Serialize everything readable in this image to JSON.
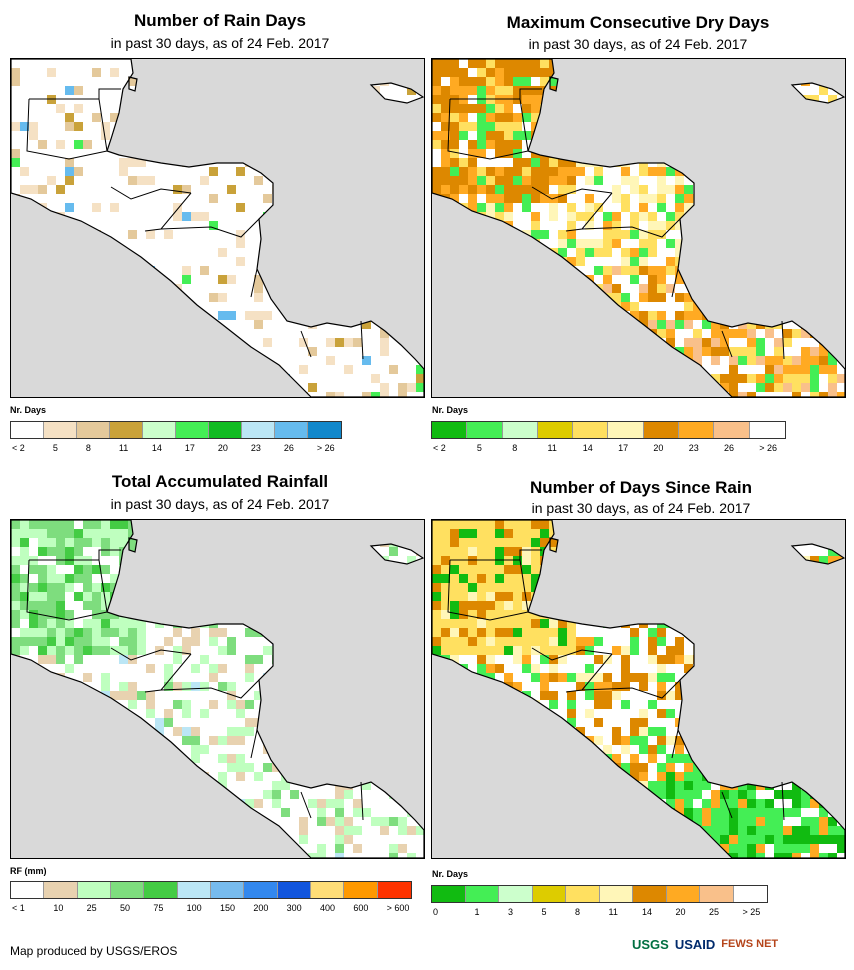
{
  "panels": [
    {
      "title": "Number of Rain Days",
      "subtitle": "in past 30 days, as of 24 Feb. 2017",
      "legend_title": "Nr. Days",
      "legend_colors": [
        "#ffffff",
        "#f5e1c4",
        "#e4c99b",
        "#c9a23a",
        "#ccffcc",
        "#44ee55",
        "#11bb22",
        "#bbe6f5",
        "#66bbee",
        "#1188cc"
      ],
      "legend_labels": [
        "< 2",
        "5",
        "8",
        "11",
        "14",
        "17",
        "20",
        "23",
        "26",
        "> 26"
      ],
      "scheme": "rain_days"
    },
    {
      "title": "Maximum Consecutive Dry Days",
      "subtitle": "in past 30 days, as of 24 Feb. 2017",
      "legend_title": "Nr. Days",
      "legend_colors": [
        "#11bb11",
        "#44ee55",
        "#ccffcc",
        "#ddcc00",
        "#ffe060",
        "#fff6b8",
        "#dd8800",
        "#ffaa22",
        "#f9c08a",
        "#ffffff"
      ],
      "legend_labels": [
        "< 2",
        "5",
        "8",
        "11",
        "14",
        "17",
        "20",
        "23",
        "26",
        "> 26"
      ],
      "scheme": "dry_days"
    },
    {
      "title": "Total Accumulated Rainfall",
      "subtitle": "in past 30 days, as of 24 Feb. 2017",
      "legend_title": "RF (mm)",
      "legend_colors": [
        "#ffffff",
        "#e8d2b0",
        "#bfffbf",
        "#7edd7e",
        "#44cc44",
        "#bbe6f5",
        "#77bbee",
        "#3388ee",
        "#1155dd",
        "#ffdd77",
        "#ff9900",
        "#ff3300"
      ],
      "legend_labels": [
        "< 1",
        "10",
        "25",
        "50",
        "75",
        "100",
        "150",
        "200",
        "300",
        "400",
        "600",
        "> 600"
      ],
      "scheme": "rainfall"
    },
    {
      "title": "Number of Days Since Rain",
      "subtitle": "in past 30 days, as of 24 Feb. 2017",
      "legend_title": "Nr. Days",
      "legend_colors": [
        "#11bb11",
        "#44ee55",
        "#ccffcc",
        "#ddcc00",
        "#ffe060",
        "#fff6b8",
        "#dd8800",
        "#ffaa22",
        "#f9c08a",
        "#ffffff"
      ],
      "legend_labels": [
        "0",
        "1",
        "3",
        "5",
        "8",
        "11",
        "14",
        "20",
        "25",
        "> 25"
      ],
      "scheme": "since_rain"
    }
  ],
  "credit": "Map produced by USGS/EROS",
  "logos": [
    "USGS",
    "USAID",
    "FEWS NET"
  ]
}
